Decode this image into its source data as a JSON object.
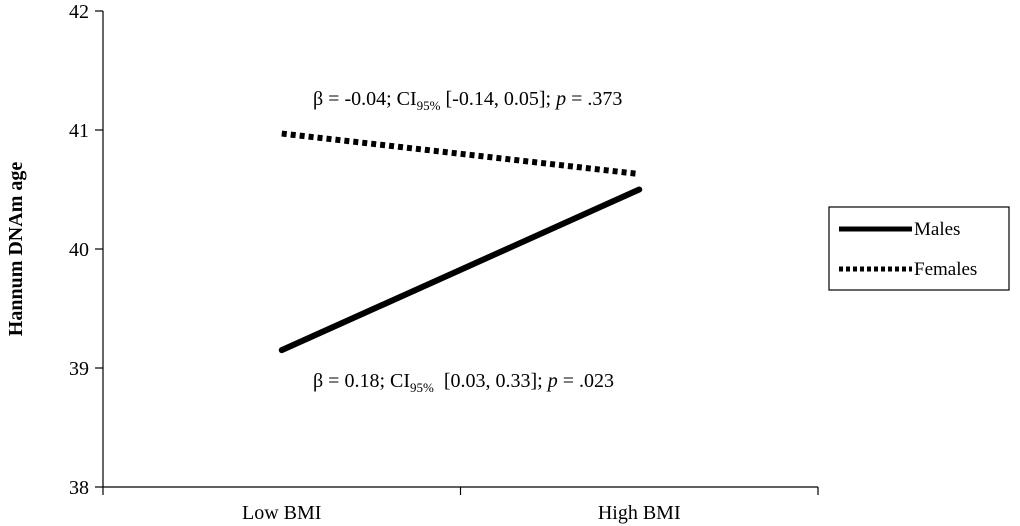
{
  "chart_data": {
    "type": "line",
    "categories": [
      "Low BMI",
      "High BMI"
    ],
    "series": [
      {
        "name": "Males",
        "values": [
          39.15,
          40.5
        ],
        "style": "solid",
        "color": "#000000"
      },
      {
        "name": "Females",
        "values": [
          40.97,
          40.63
        ],
        "style": "dotted",
        "color": "#000000"
      }
    ],
    "ylabel": "Hannum DNAm age",
    "xlabel": "",
    "ylim": [
      38,
      42
    ],
    "yticks": [
      "38",
      "39",
      "40",
      "41",
      "42"
    ],
    "grid": false,
    "legend_position": "right",
    "annotations": {
      "females": {
        "beta": "β = -0.04; CI",
        "ci_sub": "95%",
        "ci": " [-0.14, 0.05]; ",
        "p": "p",
        "pval": " = .373"
      },
      "males": {
        "beta": "β = 0.18; CI",
        "ci_sub": "95%",
        "ci": "  [0.03, 0.33]; ",
        "p": "p",
        "pval": " = .023"
      }
    }
  }
}
